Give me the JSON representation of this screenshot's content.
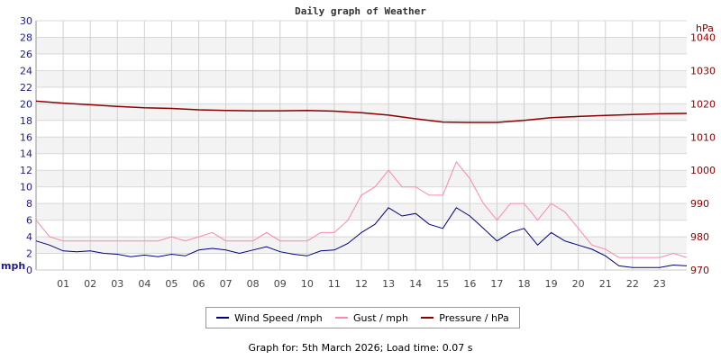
{
  "chart_data": {
    "type": "line",
    "title": "Daily graph of Weather",
    "x_ticks": [
      "01",
      "02",
      "03",
      "04",
      "05",
      "06",
      "07",
      "08",
      "09",
      "10",
      "11",
      "12",
      "13",
      "14",
      "15",
      "16",
      "17",
      "18",
      "19",
      "20",
      "21",
      "22",
      "23"
    ],
    "xlim": [
      0,
      24
    ],
    "left_axis": {
      "label": "mph",
      "ylim": [
        0,
        30
      ],
      "ticks": [
        0,
        2,
        4,
        6,
        8,
        10,
        12,
        14,
        16,
        18,
        20,
        22,
        24,
        26,
        28,
        30
      ],
      "color": "#1c1c8c"
    },
    "right_axis": {
      "label": "hPa",
      "ylim": [
        970,
        1045
      ],
      "ticks": [
        970,
        980,
        990,
        1000,
        1010,
        1020,
        1030,
        1040
      ],
      "color": "#8b0000"
    },
    "grid": true,
    "legend_placement": "bottom",
    "series": [
      {
        "name": "Wind Speed /mph",
        "axis": "left",
        "color": "#000080",
        "x": [
          0,
          0.5,
          1,
          1.5,
          2,
          2.5,
          3,
          3.5,
          4,
          4.5,
          5,
          5.5,
          6,
          6.5,
          7,
          7.5,
          8,
          8.5,
          9,
          9.5,
          10,
          10.5,
          11,
          11.5,
          12,
          12.5,
          13,
          13.5,
          14,
          14.5,
          15,
          15.5,
          16,
          16.5,
          17,
          17.5,
          18,
          18.5,
          19,
          19.5,
          20,
          20.5,
          21,
          21.5,
          22,
          22.5,
          23,
          23.5,
          24
        ],
        "values": [
          3.5,
          3.0,
          2.3,
          2.2,
          2.3,
          2.0,
          1.9,
          1.6,
          1.8,
          1.6,
          1.9,
          1.7,
          2.4,
          2.6,
          2.4,
          2.0,
          2.4,
          2.8,
          2.2,
          1.9,
          1.7,
          2.3,
          2.4,
          3.2,
          4.5,
          5.5,
          7.5,
          6.5,
          6.8,
          5.5,
          5.0,
          7.5,
          6.5,
          5.0,
          3.5,
          4.5,
          5.0,
          3.0,
          4.5,
          3.5,
          3.0,
          2.5,
          1.7,
          0.5,
          0.3,
          0.3,
          0.3,
          0.6,
          0.5
        ]
      },
      {
        "name": "Gust / mph",
        "axis": "left",
        "color": "#ff88aa",
        "x": [
          0,
          0.5,
          1,
          1.5,
          2,
          2.5,
          3,
          3.5,
          4,
          4.5,
          5,
          5.5,
          6,
          6.5,
          7,
          7.5,
          8,
          8.5,
          9,
          9.5,
          10,
          10.5,
          11,
          11.5,
          12,
          12.5,
          13,
          13.5,
          14,
          14.5,
          15,
          15.5,
          16,
          16.5,
          17,
          17.5,
          18,
          18.5,
          19,
          19.5,
          20,
          20.5,
          21,
          21.5,
          22,
          22.5,
          23,
          23.5,
          24
        ],
        "values": [
          6,
          4,
          3.5,
          3.5,
          3.5,
          3.5,
          3.5,
          3.5,
          3.5,
          3.5,
          4,
          3.5,
          4,
          4.5,
          3.5,
          3.5,
          3.5,
          4.5,
          3.5,
          3.5,
          3.5,
          4.5,
          4.5,
          6,
          9,
          10,
          12,
          10,
          10,
          9,
          9,
          13,
          11,
          8,
          6,
          8,
          8,
          6,
          8,
          7,
          5,
          3,
          2.5,
          1.5,
          1.5,
          1.5,
          1.5,
          2,
          1.5
        ]
      },
      {
        "name": "Pressure / hPa",
        "axis": "right",
        "color": "#8b0000",
        "x": [
          0,
          1,
          2,
          3,
          4,
          5,
          6,
          7,
          8,
          9,
          10,
          11,
          12,
          13,
          14,
          15,
          16,
          17,
          18,
          19,
          20,
          21,
          22,
          23,
          24
        ],
        "values": [
          1020.8,
          1020.2,
          1019.7,
          1019.2,
          1018.8,
          1018.6,
          1018.2,
          1018.0,
          1017.9,
          1017.9,
          1018.0,
          1017.8,
          1017.3,
          1016.6,
          1015.5,
          1014.5,
          1014.4,
          1014.4,
          1015.0,
          1015.8,
          1016.2,
          1016.5,
          1016.8,
          1017.0,
          1017.1
        ]
      }
    ]
  },
  "footer": "Graph for: 5th March 2026; Load time: 0.07 s"
}
